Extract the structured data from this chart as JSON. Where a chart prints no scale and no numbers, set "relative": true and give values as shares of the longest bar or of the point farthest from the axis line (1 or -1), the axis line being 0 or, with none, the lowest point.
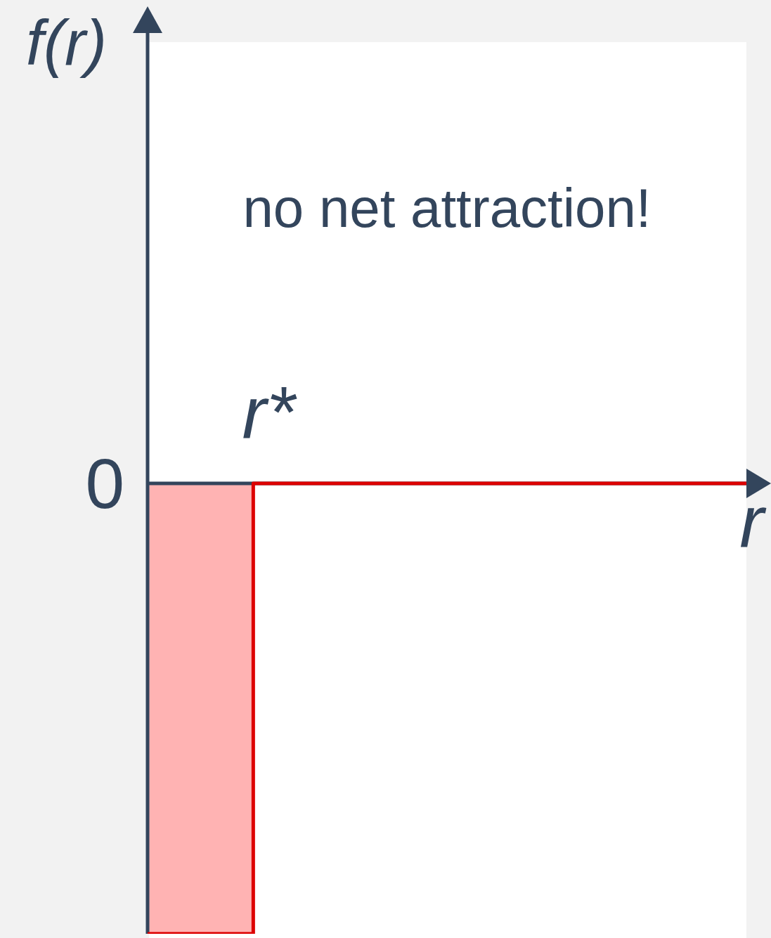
{
  "chart_data": {
    "type": "step",
    "xlabel": "r",
    "relative": true,
    "categories": [
      null,
      null,
      null,
      null,
      null,
      null,
      null,
      null,
      null,
      null,
      null,
      null,
      null,
      null,
      null,
      null,
      null,
      null
    ],
    "annotations": [
      "f(r)",
      "no net attraction!",
      "r*",
      "0"
    ],
    "series": [
      {
        "type": "area",
        "color": "#ffb3b3",
        "values": [
          -1,
          -1,
          -1,
          -1,
          null,
          null,
          null,
          null,
          null,
          null,
          null,
          null,
          null,
          null,
          null,
          null,
          null,
          null
        ]
      },
      {
        "type": "step",
        "color": "#dd0000",
        "values": [
          -1,
          -1,
          -1,
          0,
          0,
          0,
          0,
          0,
          0,
          0,
          0,
          0,
          0,
          0,
          0,
          0,
          0,
          0
        ]
      }
    ]
  }
}
